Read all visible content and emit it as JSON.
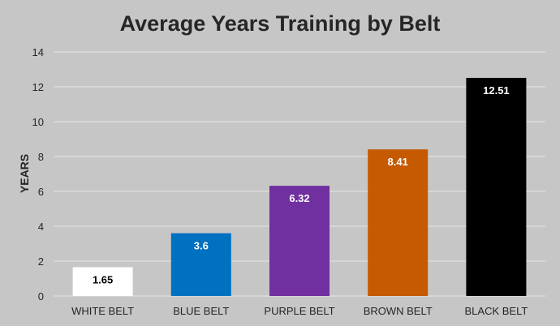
{
  "chart_data": {
    "type": "bar",
    "title": "Average Years Training by Belt",
    "xlabel": "",
    "ylabel": "YEARS",
    "ylim": [
      0,
      14
    ],
    "yticks": [
      0,
      2,
      4,
      6,
      8,
      10,
      12,
      14
    ],
    "grid": true,
    "legend": "none",
    "categories": [
      "WHITE BELT",
      "BLUE BELT",
      "PURPLE BELT",
      "BROWN BELT",
      "BLACK BELT"
    ],
    "values": [
      1.65,
      3.6,
      6.32,
      8.41,
      12.51
    ],
    "value_labels": [
      "1.65",
      "3.6",
      "6.32",
      "8.41",
      "12.51"
    ],
    "colors": [
      "#ffffff",
      "#0070c0",
      "#7030a0",
      "#c55a00",
      "#000000"
    ],
    "label_colors": [
      "#000000",
      "#ffffff",
      "#ffffff",
      "#ffffff",
      "#ffffff"
    ]
  },
  "colors": {
    "background": "#c6c6c6",
    "gridline": "#e6e6e6",
    "text": "#262626"
  }
}
